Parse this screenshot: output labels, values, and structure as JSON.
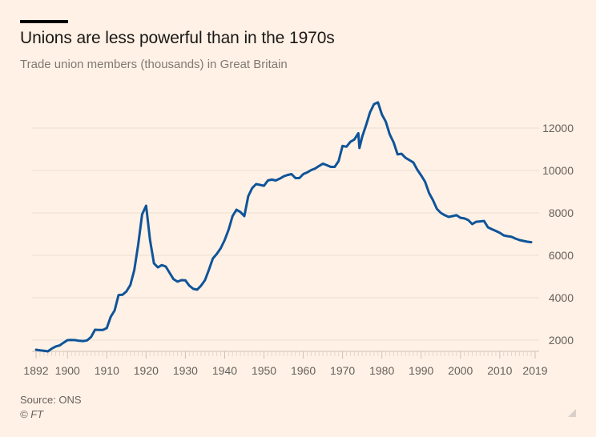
{
  "header": {
    "title": "Unions are less powerful than in the 1970s",
    "subtitle": "Trade union members (thousands) in Great Britain"
  },
  "footer": {
    "source": "Source: ONS",
    "copyright": "© FT"
  },
  "colors": {
    "background": "#fff1e5",
    "line": "#0f5499",
    "gridline": "#e9ded5",
    "axis_text": "#66605c"
  },
  "chart_data": {
    "type": "line",
    "title": "Unions are less powerful than in the 1970s",
    "subtitle": "Trade union members (thousands) in Great Britain",
    "xlabel": "",
    "ylabel": "Trade union members (thousands)",
    "xlim": [
      1892,
      2019
    ],
    "ylim": [
      1500,
      13500
    ],
    "grid": true,
    "y_axis_side": "right",
    "x_ticks": [
      1892,
      1900,
      1910,
      1920,
      1930,
      1940,
      1950,
      1960,
      1970,
      1980,
      1990,
      2000,
      2010,
      2019
    ],
    "x_tick_labels": [
      "1892",
      "1900",
      "1910",
      "1920",
      "1930",
      "1940",
      "1950",
      "1960",
      "1970",
      "1980",
      "1990",
      "2000",
      "2010",
      "2019"
    ],
    "y_ticks": [
      2000,
      4000,
      6000,
      8000,
      10000,
      12000
    ],
    "y_tick_labels": [
      "2000",
      "4000",
      "6000",
      "8000",
      "10000",
      "12000"
    ],
    "series": [
      {
        "name": "Trade union members",
        "x": [
          1892,
          1893,
          1894,
          1895,
          1896,
          1897,
          1898,
          1899,
          1900,
          1901,
          1902,
          1903,
          1904,
          1905,
          1906,
          1907,
          1908,
          1909,
          1910,
          1911,
          1912,
          1913,
          1914,
          1915,
          1916,
          1917,
          1918,
          1919,
          1920,
          1921,
          1922,
          1923,
          1924,
          1925,
          1926,
          1927,
          1928,
          1929,
          1930,
          1931,
          1932,
          1933,
          1934,
          1935,
          1936,
          1937,
          1938,
          1939,
          1940,
          1941,
          1942,
          1943,
          1944,
          1945,
          1946,
          1947,
          1948,
          1949,
          1950,
          1951,
          1952,
          1953,
          1954,
          1955,
          1956,
          1957,
          1958,
          1959,
          1960,
          1961,
          1962,
          1963,
          1964,
          1965,
          1966,
          1967,
          1968,
          1969,
          1970,
          1971,
          1972,
          1973,
          1974,
          1974.3,
          1975,
          1976,
          1977,
          1978,
          1979,
          1980,
          1981,
          1982,
          1983,
          1984,
          1985,
          1986,
          1987,
          1988,
          1989,
          1990,
          1991,
          1992,
          1993,
          1994,
          1995,
          1996,
          1997,
          1998,
          1999,
          2000,
          2001,
          2002,
          2003,
          2004,
          2005,
          2006,
          2007,
          2008,
          2009,
          2010,
          2011,
          2012,
          2013,
          2014,
          2015,
          2016,
          2017,
          2018
        ],
        "values": [
          1547,
          1520,
          1500,
          1472,
          1600,
          1700,
          1750,
          1880,
          2000,
          2010,
          2000,
          1970,
          1960,
          1990,
          2150,
          2490,
          2480,
          2480,
          2570,
          3100,
          3400,
          4130,
          4140,
          4300,
          4600,
          5300,
          6500,
          7930,
          8340,
          6720,
          5620,
          5430,
          5540,
          5470,
          5170,
          4870,
          4760,
          4830,
          4820,
          4570,
          4420,
          4380,
          4570,
          4830,
          5320,
          5850,
          6070,
          6340,
          6720,
          7210,
          7850,
          8150,
          8040,
          7850,
          8790,
          9170,
          9360,
          9320,
          9280,
          9530,
          9570,
          9530,
          9610,
          9720,
          9790,
          9830,
          9640,
          9640,
          9830,
          9910,
          10020,
          10090,
          10210,
          10320,
          10250,
          10170,
          10170,
          10440,
          11160,
          11120,
          11350,
          11460,
          11760,
          11060,
          11600,
          12150,
          12750,
          13130,
          13210,
          12640,
          12300,
          11700,
          11320,
          10760,
          10790,
          10600,
          10490,
          10380,
          10040,
          9770,
          9470,
          8940,
          8600,
          8190,
          8000,
          7890,
          7810,
          7850,
          7890,
          7770,
          7740,
          7660,
          7470,
          7580,
          7600,
          7620,
          7320,
          7230,
          7150,
          7060,
          6940,
          6900,
          6870,
          6790,
          6720,
          6680,
          6640,
          6620
        ]
      }
    ]
  }
}
